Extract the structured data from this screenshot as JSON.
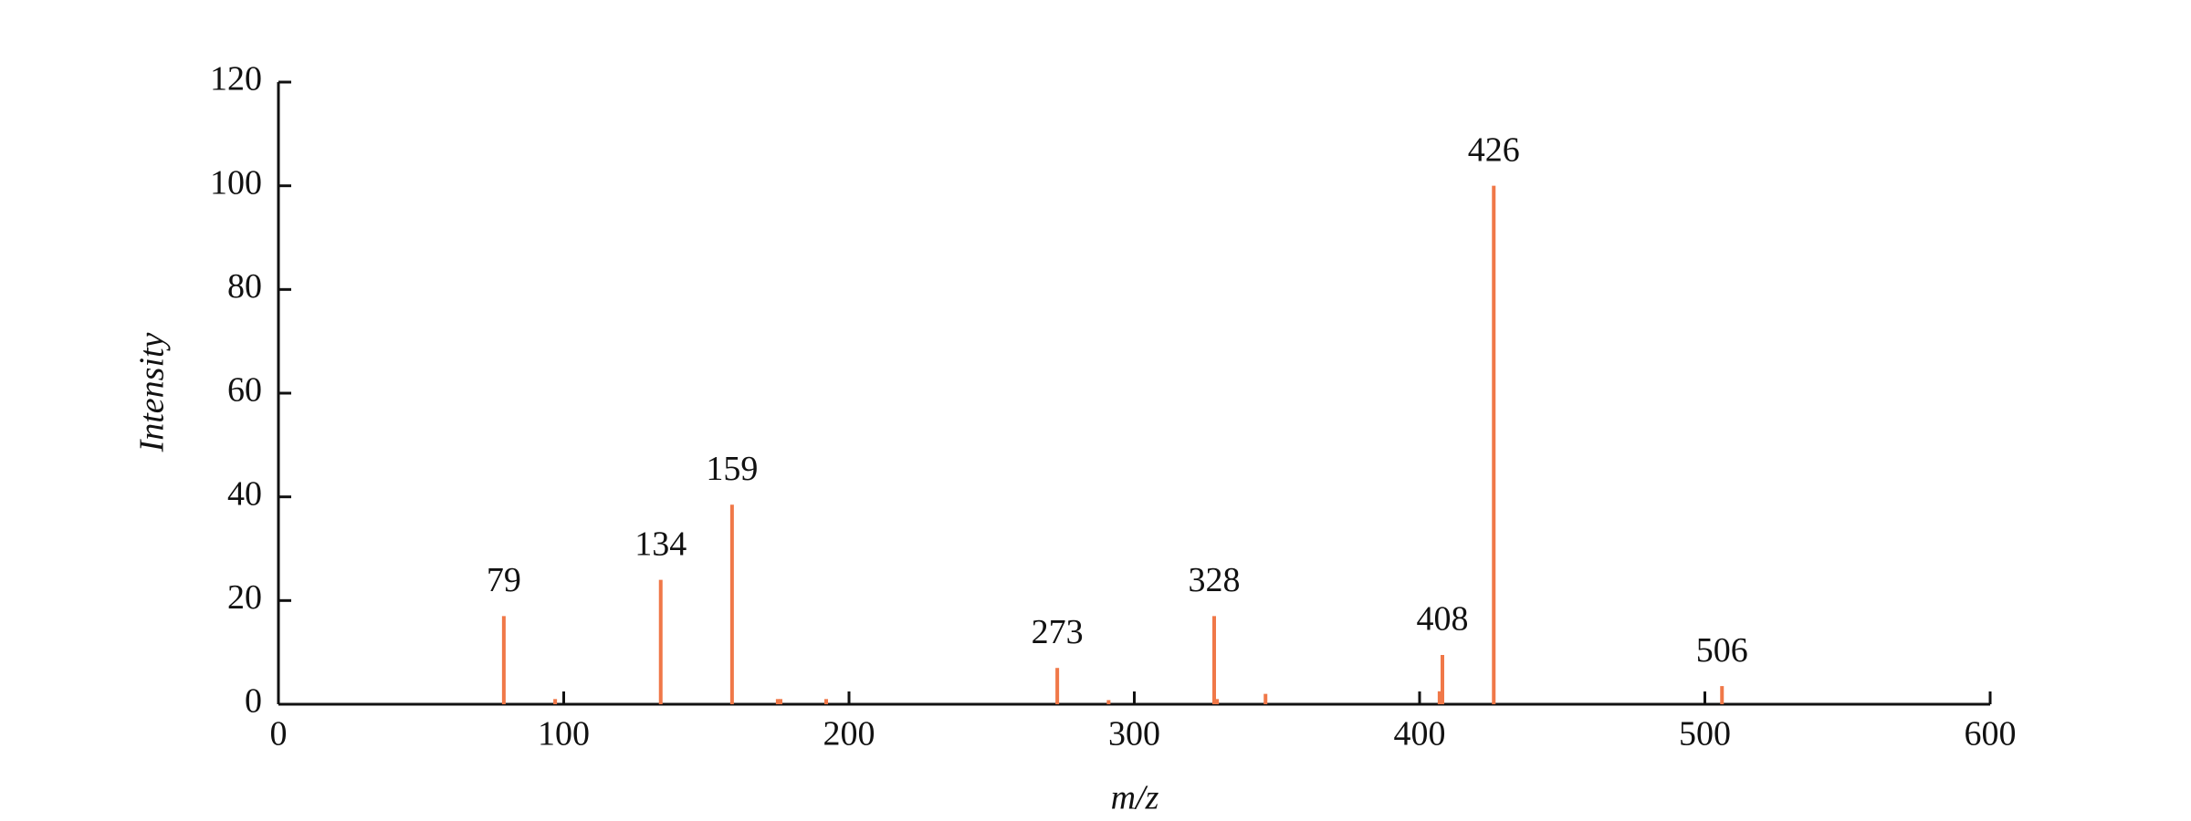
{
  "chart_data": {
    "type": "stem",
    "x_label": "m/z",
    "y_label": "Intensity",
    "xlim": [
      0,
      600
    ],
    "xticks": [
      0,
      100,
      200,
      300,
      400,
      500,
      600
    ],
    "ylim": [
      0,
      120
    ],
    "yticks": [
      0,
      20,
      40,
      60,
      80,
      100,
      120
    ],
    "series": [
      {
        "color": "#f07848",
        "show_labels": true,
        "x": [
          79,
          134,
          159,
          273,
          328,
          408,
          426,
          506
        ],
        "values": [
          17,
          24,
          38.5,
          7,
          17,
          9.5,
          100,
          3.5
        ]
      },
      {
        "color": "#f07848",
        "show_labels": false,
        "x": [
          97,
          175,
          176,
          192,
          291,
          329,
          346,
          407
        ],
        "values": [
          1,
          1,
          1,
          1,
          0.8,
          1,
          2,
          2.5
        ]
      }
    ]
  }
}
